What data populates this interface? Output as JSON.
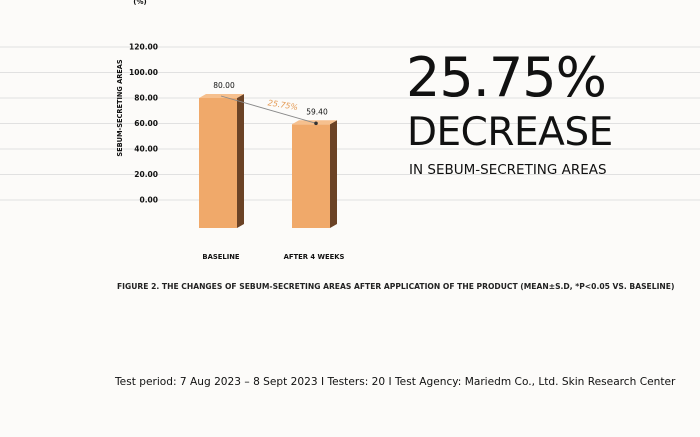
{
  "chart_data": {
    "type": "bar",
    "title": "",
    "xlabel": "",
    "ylabel": "SEBUM-SECRETING AREAS",
    "y_unit": "(%)",
    "ylim": [
      0,
      120
    ],
    "yticks": [
      "0.00",
      "20.00",
      "40.00",
      "60.00",
      "80.00",
      "100.00",
      "120.00"
    ],
    "categories": [
      "BASELINE",
      "AFTER 4 WEEKS"
    ],
    "values": [
      80.0,
      59.4
    ],
    "value_labels": [
      "80.00",
      "59.40"
    ],
    "change_label": "25.75%",
    "grid": true,
    "colors": {
      "bar_front": "#f0a96a",
      "bar_side": "#6b4326",
      "change_label": "#e49a54"
    }
  },
  "highlight": {
    "percentage": "25.75%",
    "word": "DECREASE",
    "subtitle": "IN SEBUM-SECRETING AREAS"
  },
  "caption": "FIGURE 2. THE CHANGES OF SEBUM-SECRETING AREAS AFTER APPLICATION OF THE PRODUCT (MEAN±S.D, *P<0.05 VS. BASELINE)",
  "footer": "Test period: 7 Aug 2023 – 8 Sept 2023 I Testers: 20 I Test Agency: Mariedm Co., Ltd. Skin Research Center"
}
